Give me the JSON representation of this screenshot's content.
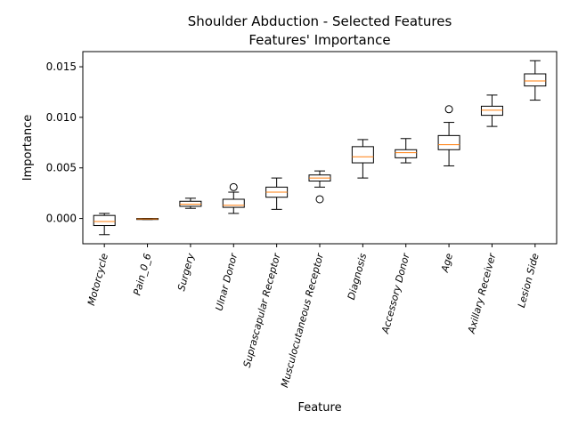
{
  "chart_data": {
    "type": "box",
    "title": "Shoulder Abduction - Selected Features",
    "subtitle": "Features' Importance",
    "xlabel": "Feature",
    "ylabel": "Importance",
    "ylim": [
      -0.0025,
      0.0165
    ],
    "yticks": [
      0.0,
      0.005,
      0.01,
      0.015
    ],
    "ytick_labels": [
      "0.000",
      "0.005",
      "0.010",
      "0.015"
    ],
    "grid": false,
    "colors": {
      "box": "#000000",
      "median": "#ff7f0e"
    },
    "categories": [
      "Motorcycle",
      "Pain_0_6",
      "Surgery",
      "Ulnar Donor",
      "Suprascapular Receptor",
      "Musculocutaneous Receptor",
      "Diagnosis",
      "Accessory Donor",
      "Age",
      "Axillary Receiver",
      "Lesion Side"
    ],
    "boxes": [
      {
        "whislo": -0.0016,
        "q1": -0.0007,
        "med": -0.0003,
        "q3": 0.0003,
        "whishi": 0.0005,
        "fliers": []
      },
      {
        "whislo": -0.0001,
        "q1": -0.0001,
        "med": -5e-05,
        "q3": 0.0,
        "whishi": 0.0,
        "fliers": []
      },
      {
        "whislo": 0.001,
        "q1": 0.0012,
        "med": 0.0014,
        "q3": 0.0017,
        "whishi": 0.002,
        "fliers": []
      },
      {
        "whislo": 0.0005,
        "q1": 0.0011,
        "med": 0.0013,
        "q3": 0.0019,
        "whishi": 0.0026,
        "fliers": [
          0.0031
        ]
      },
      {
        "whislo": 0.0009,
        "q1": 0.0021,
        "med": 0.0026,
        "q3": 0.0031,
        "whishi": 0.004,
        "fliers": []
      },
      {
        "whislo": 0.0031,
        "q1": 0.0037,
        "med": 0.004,
        "q3": 0.0043,
        "whishi": 0.0047,
        "fliers": [
          0.0019
        ]
      },
      {
        "whislo": 0.004,
        "q1": 0.0055,
        "med": 0.0061,
        "q3": 0.0071,
        "whishi": 0.0078,
        "fliers": []
      },
      {
        "whislo": 0.0055,
        "q1": 0.006,
        "med": 0.0065,
        "q3": 0.0068,
        "whishi": 0.0079,
        "fliers": []
      },
      {
        "whislo": 0.0052,
        "q1": 0.0068,
        "med": 0.0073,
        "q3": 0.0082,
        "whishi": 0.0095,
        "fliers": [
          0.0108
        ]
      },
      {
        "whislo": 0.0091,
        "q1": 0.0102,
        "med": 0.0107,
        "q3": 0.0111,
        "whishi": 0.0122,
        "fliers": []
      },
      {
        "whislo": 0.0117,
        "q1": 0.0131,
        "med": 0.0136,
        "q3": 0.0143,
        "whishi": 0.0156,
        "fliers": []
      }
    ]
  }
}
